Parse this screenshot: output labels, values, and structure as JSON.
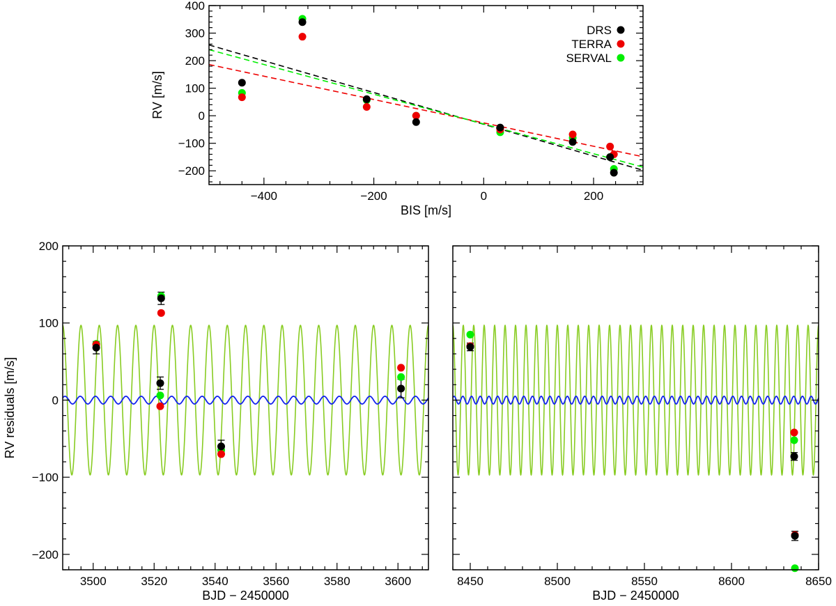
{
  "colors": {
    "DRS": "#000000",
    "TERRA": "#ee0000",
    "SERVAL": "#00ee00",
    "keplerian": "#88cc22",
    "residual_model": "#1122ee"
  },
  "chart_data": [
    {
      "id": "top",
      "type": "scatter",
      "title": "",
      "xlabel": "BIS [m/s]",
      "ylabel": "RV [m/s]",
      "xlim": [
        -500,
        290
      ],
      "ylim": [
        -250,
        400
      ],
      "xticks": [
        -400,
        -200,
        0,
        200
      ],
      "yticks": [
        -200,
        -100,
        0,
        100,
        200,
        300,
        400
      ],
      "legend": {
        "position": "top-right",
        "entries": [
          "DRS",
          "TERRA",
          "SERVAL"
        ]
      },
      "series": [
        {
          "name": "DRS",
          "color": "#000000",
          "x": [
            -440,
            -330,
            -213,
            -123,
            30,
            162,
            230,
            237
          ],
          "y": [
            120,
            340,
            60,
            -23,
            -43,
            -95,
            -150,
            -207
          ]
        },
        {
          "name": "TERRA",
          "color": "#ee0000",
          "x": [
            -440,
            -330,
            -213,
            -123,
            30,
            162,
            230,
            237
          ],
          "y": [
            67,
            287,
            32,
            0,
            -50,
            -68,
            -112,
            -140
          ]
        },
        {
          "name": "SERVAL",
          "color": "#00ee00",
          "x": [
            -440,
            -330,
            -213,
            -123,
            30,
            162,
            230,
            237
          ],
          "y": [
            83,
            352,
            57,
            0,
            -60,
            -80,
            -150,
            -193
          ]
        }
      ],
      "fits": [
        {
          "name": "DRS fit",
          "color": "#000000",
          "slope": -0.576,
          "intercept": -31
        },
        {
          "name": "TERRA fit",
          "color": "#ee0000",
          "slope": -0.424,
          "intercept": -26
        },
        {
          "name": "SERVAL fit",
          "color": "#00ee00",
          "slope": -0.54,
          "intercept": -30
        }
      ]
    },
    {
      "id": "bottom-left",
      "type": "scatter",
      "xlabel": "BJD − 2450000",
      "ylabel": "RV residuals [m/s]",
      "xlim": [
        3490,
        3610
      ],
      "ylim": [
        -220,
        200
      ],
      "xticks": [
        3500,
        3520,
        3540,
        3560,
        3580,
        3600
      ],
      "yticks": [
        -200,
        -100,
        0,
        100,
        200
      ],
      "models": [
        {
          "name": "keplerian",
          "color": "#88cc22",
          "amplitude": 97,
          "period": 6.0,
          "t0": 3488.5
        },
        {
          "name": "residual_model",
          "color": "#1122ee",
          "amplitude": 5,
          "period": 5.0,
          "t0": 3489.5
        }
      ],
      "series": [
        {
          "name": "DRS",
          "color": "#000000",
          "x": [
            3501,
            3522,
            3522.3,
            3542,
            3601
          ],
          "y": [
            68,
            22,
            132,
            -60,
            15
          ],
          "err": [
            8,
            8,
            8,
            8,
            12
          ]
        },
        {
          "name": "TERRA",
          "color": "#ee0000",
          "x": [
            3501,
            3522,
            3522.3,
            3542,
            3601
          ],
          "y": [
            72,
            -8,
            113,
            -70,
            42
          ],
          "err": [
            0,
            0,
            0,
            0,
            0
          ]
        },
        {
          "name": "SERVAL",
          "color": "#00ee00",
          "x": [
            3501,
            3522,
            3522.3,
            3542,
            3601
          ],
          "y": [
            73,
            6,
            135,
            -65,
            30
          ],
          "err": [
            0,
            0,
            0,
            0,
            0
          ]
        }
      ]
    },
    {
      "id": "bottom-right",
      "type": "scatter",
      "xlabel": "BJD − 2450000",
      "ylabel": "",
      "xlim": [
        8440,
        8650
      ],
      "ylim": [
        -220,
        200
      ],
      "xticks": [
        8450,
        8500,
        8550,
        8600,
        8650
      ],
      "yticks": [
        -200,
        -100,
        0,
        100,
        200
      ],
      "models": [
        {
          "name": "keplerian",
          "color": "#88cc22",
          "amplitude": 97,
          "period": 6.0,
          "t0": 8438.5
        },
        {
          "name": "residual_model",
          "color": "#1122ee",
          "amplitude": 5,
          "period": 5.0,
          "t0": 8439.5
        }
      ],
      "series": [
        {
          "name": "DRS",
          "color": "#000000",
          "x": [
            8450,
            8636,
            8636.4
          ],
          "y": [
            69,
            -73,
            -176
          ],
          "err": [
            5,
            5,
            6
          ]
        },
        {
          "name": "TERRA",
          "color": "#ee0000",
          "x": [
            8450,
            8636,
            8636.4
          ],
          "y": [
            70,
            -42,
            -175
          ],
          "err": [
            0,
            0,
            0
          ]
        },
        {
          "name": "SERVAL",
          "color": "#00ee00",
          "x": [
            8450,
            8636,
            8636.4
          ],
          "y": [
            85,
            -52,
            -218
          ],
          "err": [
            0,
            0,
            0
          ]
        }
      ]
    }
  ]
}
